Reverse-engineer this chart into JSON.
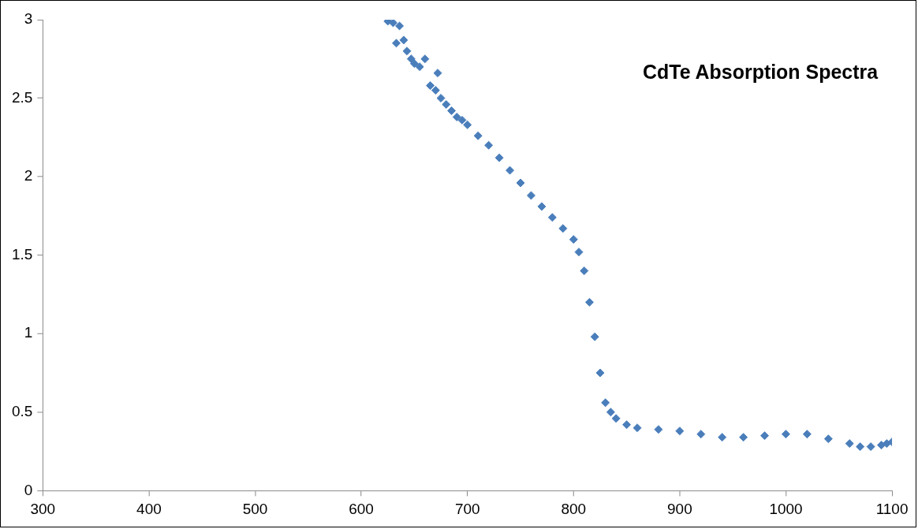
{
  "chart_data": {
    "type": "scatter",
    "title": "CdTe Absorption Spectra",
    "marker": "diamond",
    "legend": false,
    "xlim": [
      300,
      1100
    ],
    "xticks": [
      300,
      400,
      500,
      600,
      700,
      800,
      900,
      1000,
      1100
    ],
    "ylim": [
      0,
      3
    ],
    "yticks": [
      0,
      0.5,
      1,
      1.5,
      2,
      2.5,
      3
    ],
    "series": [
      {
        "color": "#4a7ebb",
        "x": [
          625,
          630,
          633,
          636,
          640,
          643,
          647,
          650,
          655,
          660,
          665,
          670,
          672,
          675,
          680,
          685,
          690,
          695,
          700,
          710,
          720,
          730,
          740,
          750,
          760,
          770,
          780,
          790,
          800,
          805,
          810,
          815,
          820,
          825,
          830,
          835,
          840,
          850,
          860,
          880,
          900,
          920,
          940,
          960,
          980,
          1000,
          1020,
          1040,
          1060,
          1070,
          1080,
          1090,
          1095,
          1100
        ],
        "values": [
          2.99,
          2.98,
          2.85,
          2.96,
          2.87,
          2.8,
          2.75,
          2.72,
          2.7,
          2.75,
          2.58,
          2.55,
          2.66,
          2.5,
          2.46,
          2.42,
          2.38,
          2.36,
          2.33,
          2.26,
          2.2,
          2.12,
          2.04,
          1.96,
          1.88,
          1.81,
          1.74,
          1.67,
          1.6,
          1.52,
          1.4,
          1.2,
          0.98,
          0.75,
          0.56,
          0.5,
          0.46,
          0.42,
          0.4,
          0.39,
          0.38,
          0.36,
          0.34,
          0.34,
          0.35,
          0.36,
          0.36,
          0.33,
          0.3,
          0.28,
          0.28,
          0.29,
          0.3,
          0.31
        ]
      }
    ]
  }
}
